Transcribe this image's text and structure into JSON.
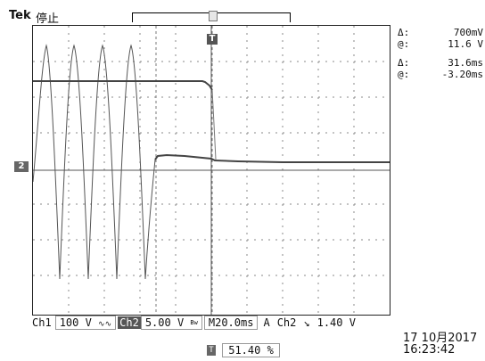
{
  "header": {
    "brand": "Tek",
    "status": "停止"
  },
  "markers": {
    "trigger_label": "T",
    "ch2_label": "2"
  },
  "readouts": {
    "v_delta_symbol": "Δ:",
    "v_delta": "700mV",
    "v_at_symbol": "@:",
    "v_at": "11.6 V",
    "t_delta_symbol": "Δ:",
    "t_delta": "31.6ms",
    "t_at_symbol": "@:",
    "t_at": "-3.20ms"
  },
  "bottom": {
    "ch1_label": "Ch1",
    "ch1_scale": "100 V",
    "ch1_coupling": "∿∿",
    "ch2_label": "Ch2",
    "ch2_scale": "5.00 V",
    "bw": "Bw",
    "time_label": "M",
    "timebase": "20.0ms",
    "acq_mode": "A",
    "trig_source": "Ch2",
    "trig_slope": "↘",
    "trig_level": "1.40 V"
  },
  "datetime": {
    "date": "17 10月2017",
    "time": "16:23:42"
  },
  "trigger_position": {
    "icon": "T",
    "value": "51.40 %"
  },
  "colors": {
    "trace": "#555555",
    "grid": "#888888",
    "background": "#ffffff"
  }
}
